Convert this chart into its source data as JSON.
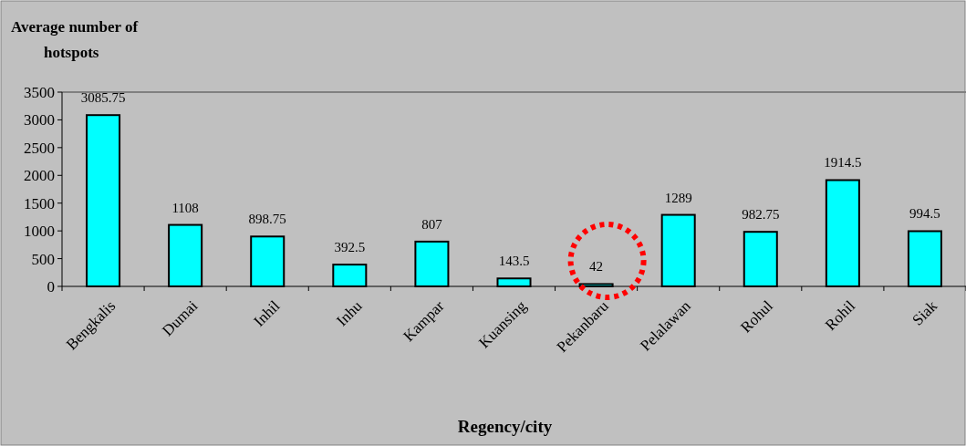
{
  "chart_data": {
    "type": "bar",
    "ylabel": "Average number of hotspots",
    "xlabel": "Regency/city",
    "categories": [
      "Bengkalis",
      "Dumai",
      "Inhil",
      "Inhu",
      "Kampar",
      "Kuansing",
      "Pekanbaru",
      "Pelalawan",
      "Rohul",
      "Rohil",
      "Siak"
    ],
    "values": [
      3085.75,
      1108,
      898.75,
      392.5,
      807,
      143.5,
      42,
      1289,
      982.75,
      1914.5,
      994.5
    ],
    "color": "#00ffff",
    "ylim": [
      0,
      3500
    ],
    "yticks": [
      0,
      500,
      1000,
      1500,
      2000,
      2500,
      3000,
      3500
    ],
    "data_labels": true
  }
}
